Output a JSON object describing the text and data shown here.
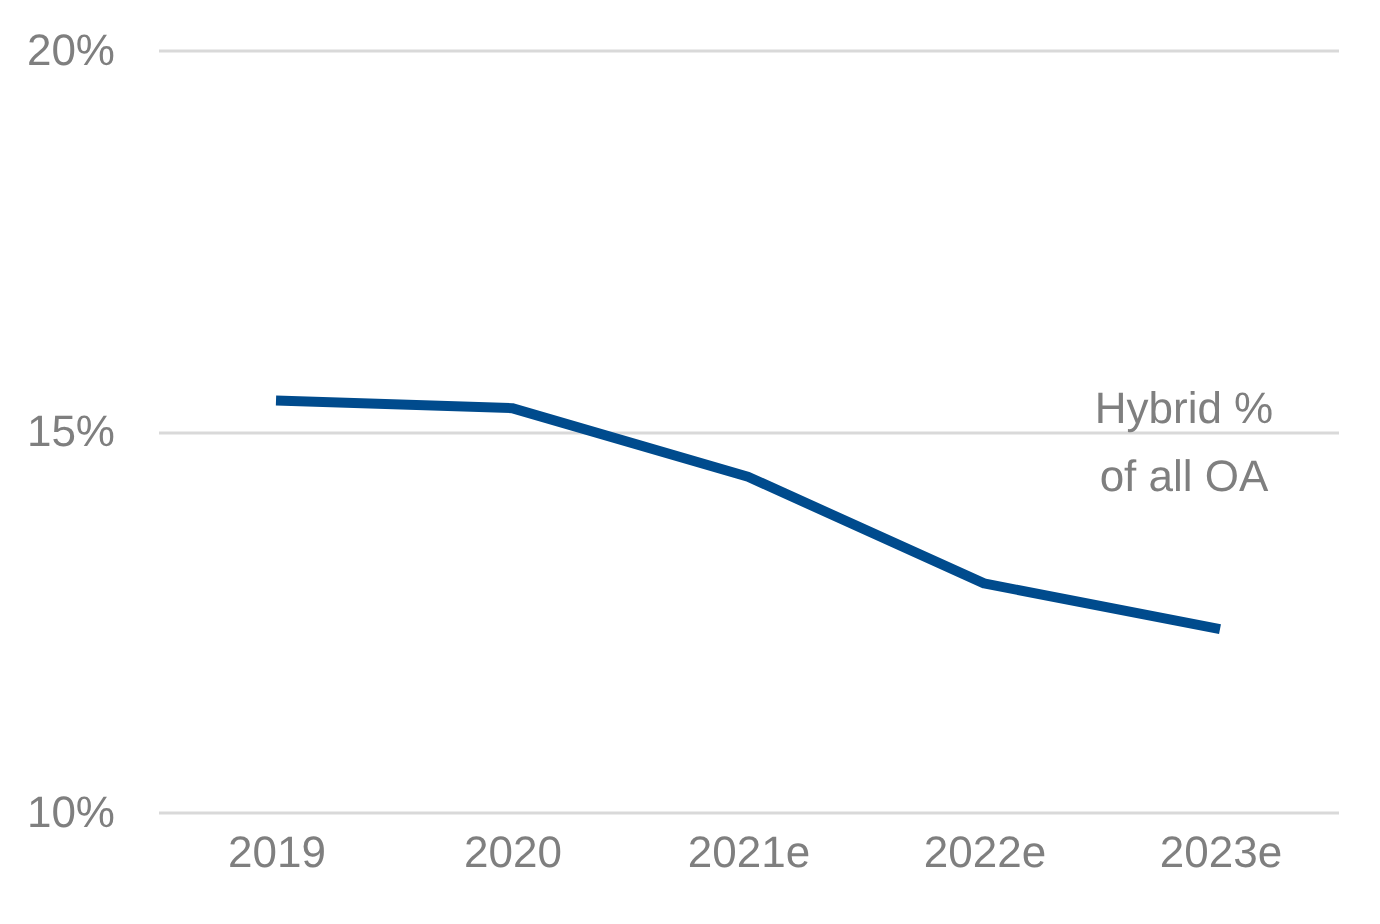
{
  "chart_data": {
    "type": "line",
    "categories": [
      "2019",
      "2020",
      "2021e",
      "2022e",
      "2023e"
    ],
    "series": [
      {
        "name": "Hybrid %\nof all OA",
        "color": "#004b8d",
        "values": [
          15.4,
          15.3,
          14.4,
          13.0,
          12.4
        ]
      }
    ],
    "ylim": [
      10,
      20
    ],
    "yticks": [
      {
        "value": 10,
        "label": "10%"
      },
      {
        "value": 15,
        "label": "15%"
      },
      {
        "value": 20,
        "label": "20%"
      }
    ],
    "grid": "y",
    "legend": false,
    "marker": "none",
    "line_style": "solid"
  }
}
